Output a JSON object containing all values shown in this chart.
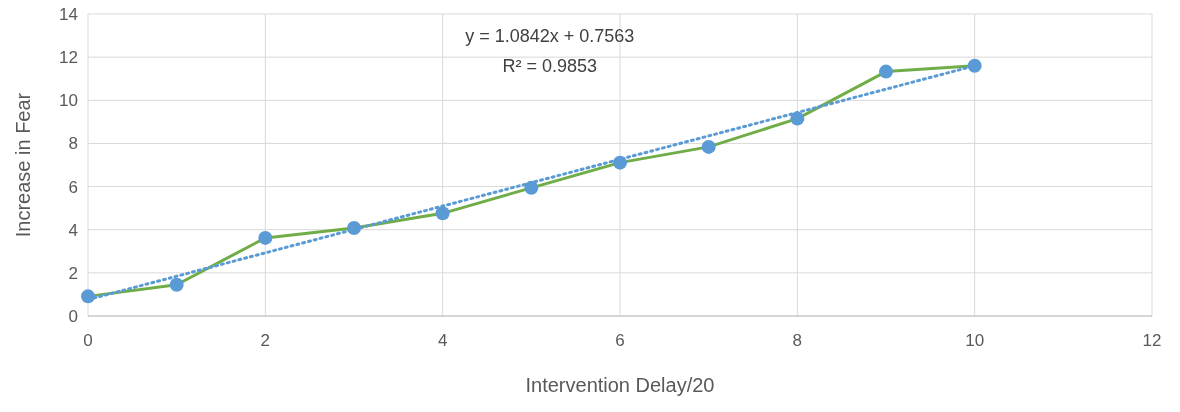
{
  "chart_data": {
    "type": "line",
    "xlabel": "Intervention Delay/20",
    "ylabel": "Increase in Fear",
    "xlim": [
      0,
      12
    ],
    "xticks": [
      0,
      2,
      4,
      6,
      8,
      10,
      12
    ],
    "ylim": [
      0,
      14
    ],
    "yticks": [
      0,
      2,
      4,
      6,
      8,
      10,
      12,
      14
    ],
    "grid": true,
    "series": [
      {
        "color": "#70ad47",
        "colors": [
          "#5b9bd5",
          "#5b9bd5",
          "#5b9bd5",
          "#5b9bd5",
          "#5b9bd5",
          "#5b9bd5",
          "#5b9bd5",
          "#5b9bd5",
          "#5b9bd5",
          "#5b9bd5",
          "#5b9bd5"
        ],
        "marker": "circle",
        "line_style": "solid",
        "x": [
          0,
          1,
          2,
          3,
          4,
          5,
          6,
          7,
          8,
          9,
          10
        ],
        "values": [
          0.91,
          1.45,
          3.62,
          4.08,
          4.76,
          5.94,
          7.11,
          7.84,
          9.15,
          11.33,
          11.6
        ]
      },
      {
        "type": "line",
        "color": "#5b9bd5",
        "marker": "none",
        "line_style": "dotted",
        "x": [
          0,
          10
        ],
        "values": [
          0.76,
          11.6
        ]
      }
    ],
    "annotations": [
      "y = 1.0842x + 0.7563",
      "R² = 0.9853"
    ]
  }
}
